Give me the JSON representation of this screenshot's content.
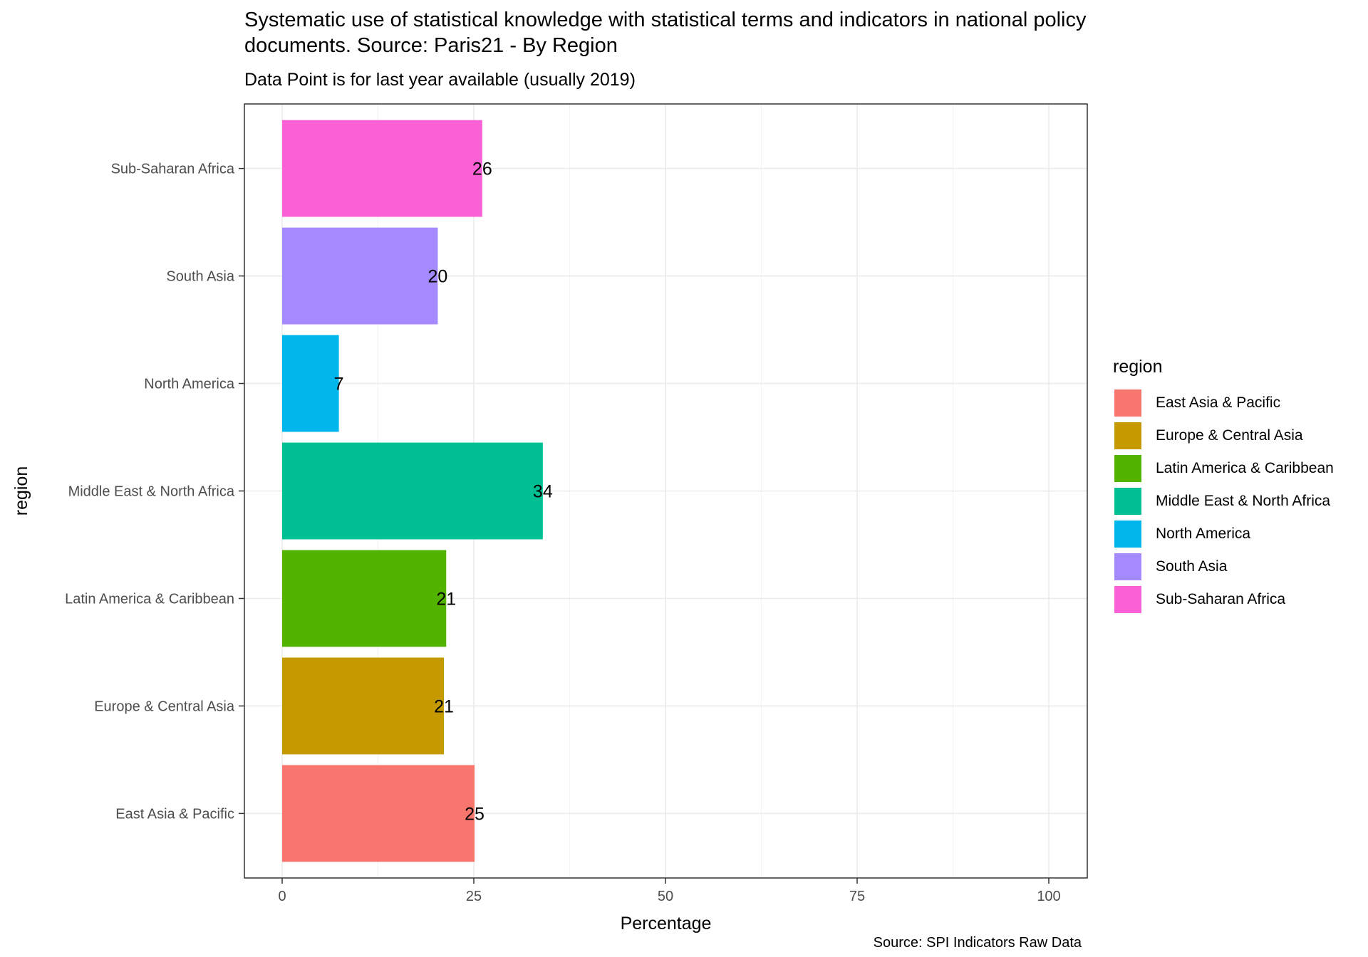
{
  "chart_data": {
    "type": "bar",
    "orientation": "horizontal",
    "title": "Systematic use of statistical knowledge with statistical terms and indicators in national policy documents. Source: Paris21 - By Region",
    "title_lines": [
      "Systematic use of statistical knowledge with statistical terms and indicators in national policy",
      "documents. Source: Paris21 - By Region"
    ],
    "subtitle": "Data Point is for last year available (usually 2019)",
    "caption": "Source: SPI Indicators Raw Data",
    "xlabel": "Percentage",
    "ylabel": "region",
    "xlim": [
      0,
      100
    ],
    "xticks": [
      0,
      25,
      50,
      75,
      100
    ],
    "grid": true,
    "categories": [
      "East Asia & Pacific",
      "Europe & Central Asia",
      "Latin America & Caribbean",
      "Middle East & North Africa",
      "North America",
      "South Asia",
      "Sub-Saharan Africa"
    ],
    "values": [
      25.1,
      21.1,
      21.4,
      34.0,
      7.4,
      20.3,
      26.1
    ],
    "labels": [
      "25",
      "21",
      "21",
      "34",
      "7",
      "20",
      "26"
    ],
    "colors": [
      "#F8766D",
      "#C49A00",
      "#53B400",
      "#00C094",
      "#00B6EB",
      "#A58AFF",
      "#FB61D7"
    ],
    "legend": {
      "title": "region",
      "position": "right",
      "items": [
        "East Asia & Pacific",
        "Europe & Central Asia",
        "Latin America & Caribbean",
        "Middle East & North Africa",
        "North America",
        "South Asia",
        "Sub-Saharan Africa"
      ]
    }
  }
}
